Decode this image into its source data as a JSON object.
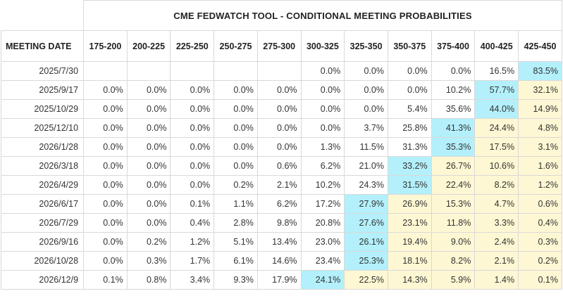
{
  "title": "CME FEDWATCH TOOL - CONDITIONAL MEETING PROBABILITIES",
  "chart_data": {
    "type": "table",
    "title": "CME FEDWATCH TOOL - CONDITIONAL MEETING PROBABILITIES",
    "row_header": "MEETING DATE",
    "columns": [
      "175-200",
      "200-225",
      "225-250",
      "250-275",
      "275-300",
      "300-325",
      "325-350",
      "350-375",
      "375-400",
      "400-425",
      "425-450"
    ],
    "colors": {
      "highlight": "#b3f0fb",
      "above_highlight": "#fdf7d3"
    },
    "rows": [
      {
        "date": "2025/7/30",
        "values": [
          "",
          "",
          "",
          "",
          "",
          "0.0%",
          "0.0%",
          "0.0%",
          "0.0%",
          "16.5%",
          "83.5%"
        ],
        "max_index": 10
      },
      {
        "date": "2025/9/17",
        "values": [
          "0.0%",
          "0.0%",
          "0.0%",
          "0.0%",
          "0.0%",
          "0.0%",
          "0.0%",
          "0.0%",
          "10.2%",
          "57.7%",
          "32.1%"
        ],
        "max_index": 9
      },
      {
        "date": "2025/10/29",
        "values": [
          "0.0%",
          "0.0%",
          "0.0%",
          "0.0%",
          "0.0%",
          "0.0%",
          "0.0%",
          "5.4%",
          "35.6%",
          "44.0%",
          "14.9%"
        ],
        "max_index": 9
      },
      {
        "date": "2025/12/10",
        "values": [
          "0.0%",
          "0.0%",
          "0.0%",
          "0.0%",
          "0.0%",
          "0.0%",
          "3.7%",
          "25.8%",
          "41.3%",
          "24.4%",
          "4.8%"
        ],
        "max_index": 8
      },
      {
        "date": "2026/1/28",
        "values": [
          "0.0%",
          "0.0%",
          "0.0%",
          "0.0%",
          "0.0%",
          "1.3%",
          "11.5%",
          "31.3%",
          "35.3%",
          "17.5%",
          "3.1%"
        ],
        "max_index": 8
      },
      {
        "date": "2026/3/18",
        "values": [
          "0.0%",
          "0.0%",
          "0.0%",
          "0.0%",
          "0.6%",
          "6.2%",
          "21.0%",
          "33.2%",
          "26.7%",
          "10.6%",
          "1.6%"
        ],
        "max_index": 7
      },
      {
        "date": "2026/4/29",
        "values": [
          "0.0%",
          "0.0%",
          "0.0%",
          "0.2%",
          "2.1%",
          "10.2%",
          "24.3%",
          "31.5%",
          "22.4%",
          "8.2%",
          "1.2%"
        ],
        "max_index": 7
      },
      {
        "date": "2026/6/17",
        "values": [
          "0.0%",
          "0.0%",
          "0.1%",
          "1.1%",
          "6.2%",
          "17.2%",
          "27.9%",
          "26.9%",
          "15.3%",
          "4.7%",
          "0.6%"
        ],
        "max_index": 6
      },
      {
        "date": "2026/7/29",
        "values": [
          "0.0%",
          "0.0%",
          "0.4%",
          "2.8%",
          "9.8%",
          "20.8%",
          "27.6%",
          "23.1%",
          "11.8%",
          "3.3%",
          "0.4%"
        ],
        "max_index": 6
      },
      {
        "date": "2026/9/16",
        "values": [
          "0.0%",
          "0.2%",
          "1.2%",
          "5.1%",
          "13.4%",
          "23.0%",
          "26.1%",
          "19.4%",
          "9.0%",
          "2.4%",
          "0.3%"
        ],
        "max_index": 6
      },
      {
        "date": "2026/10/28",
        "values": [
          "0.0%",
          "0.3%",
          "1.7%",
          "6.1%",
          "14.6%",
          "23.4%",
          "25.3%",
          "18.1%",
          "8.2%",
          "2.1%",
          "0.2%"
        ],
        "max_index": 6
      },
      {
        "date": "2026/12/9",
        "values": [
          "0.1%",
          "0.8%",
          "3.4%",
          "9.3%",
          "17.9%",
          "24.1%",
          "22.5%",
          "14.3%",
          "5.9%",
          "1.4%",
          "0.1%"
        ],
        "max_index": 5
      }
    ]
  }
}
